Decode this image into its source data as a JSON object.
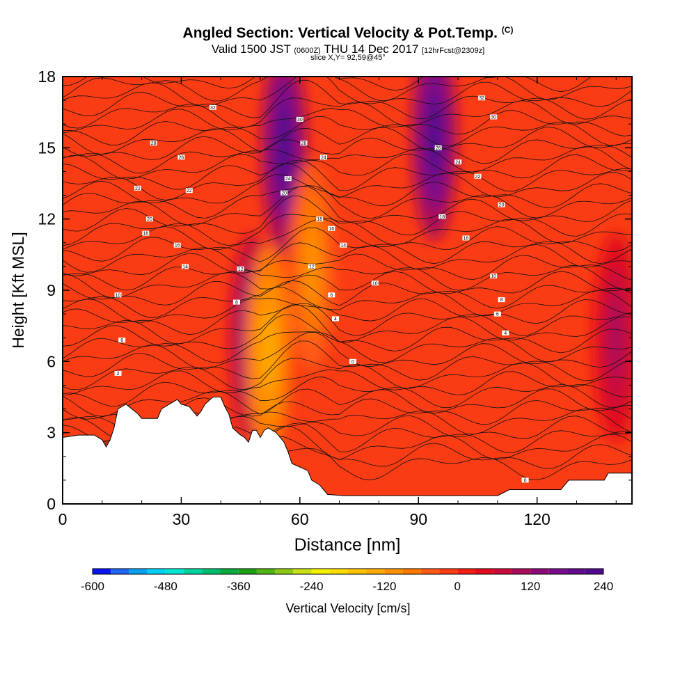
{
  "title": {
    "main": "Angled Section: Vertical Velocity & Pot.Temp.",
    "main_unit": "(C)",
    "valid_prefix": "Valid 1500 JST",
    "valid_utc": "(0600Z)",
    "valid_date": "THU 14 Dec 2017",
    "forecast": "[12hrFcst@2309z]",
    "slice": "slice X,Y= 92,59@45°"
  },
  "chart_data": {
    "type": "heatmap",
    "xlabel": "Distance [nm]",
    "ylabel": "Height [Kft MSL]",
    "xlim": [
      0,
      144
    ],
    "ylim": [
      0,
      18
    ],
    "xticks": [
      0,
      30,
      60,
      90,
      120
    ],
    "yticks": [
      0,
      3,
      6,
      9,
      12,
      15,
      18
    ],
    "colorbar": {
      "label": "Vertical Velocity [cm/s]",
      "ticks": [
        -600,
        -480,
        -360,
        -240,
        -120,
        0,
        120,
        240
      ],
      "levels": [
        -600,
        -570,
        -540,
        -510,
        -480,
        -450,
        -420,
        -390,
        -360,
        -330,
        -300,
        -270,
        -240,
        -210,
        -180,
        -150,
        -120,
        -90,
        -60,
        -30,
        0,
        30,
        60,
        90,
        120,
        150,
        180,
        210,
        240
      ],
      "colors": [
        "#0a14f0",
        "#1e64f0",
        "#0aa0f0",
        "#00d2f5",
        "#00e6d2",
        "#00d2a0",
        "#00be6e",
        "#0aaa3c",
        "#1ea014",
        "#50b414",
        "#8cc814",
        "#c8e114",
        "#f0f000",
        "#ffdc00",
        "#ffc300",
        "#ffaa00",
        "#ff9100",
        "#ff7800",
        "#ff5a14",
        "#fa3c14",
        "#f01e14",
        "#e10a1e",
        "#c80a3c",
        "#aa0a5a",
        "#8c0a78",
        "#780a8c",
        "#640a8c",
        "#500a8c"
      ]
    },
    "terrain_kft": [
      [
        0,
        2.8
      ],
      [
        4,
        2.9
      ],
      [
        8,
        2.9
      ],
      [
        10,
        2.7
      ],
      [
        11,
        2.4
      ],
      [
        12,
        2.7
      ],
      [
        13,
        3.2
      ],
      [
        14,
        4.0
      ],
      [
        16,
        4.2
      ],
      [
        19,
        3.8
      ],
      [
        20,
        3.6
      ],
      [
        24,
        3.6
      ],
      [
        25,
        4.0
      ],
      [
        27,
        4.2
      ],
      [
        29,
        4.4
      ],
      [
        30,
        4.2
      ],
      [
        32,
        4.1
      ],
      [
        34,
        3.7
      ],
      [
        35,
        3.9
      ],
      [
        36,
        4.2
      ],
      [
        38,
        4.5
      ],
      [
        40,
        4.5
      ],
      [
        41,
        4.1
      ],
      [
        42,
        3.8
      ],
      [
        43,
        3.2
      ],
      [
        45,
        2.9
      ],
      [
        46,
        2.8
      ],
      [
        47,
        2.6
      ],
      [
        48,
        3.1
      ],
      [
        49,
        3.1
      ],
      [
        50,
        2.8
      ],
      [
        51,
        3.1
      ],
      [
        52,
        3.2
      ],
      [
        54,
        3.0
      ],
      [
        56,
        2.6
      ],
      [
        57,
        2.2
      ],
      [
        58,
        1.7
      ],
      [
        62,
        1.4
      ],
      [
        63,
        1.0
      ],
      [
        65,
        0.8
      ],
      [
        66,
        0.6
      ],
      [
        67,
        0.4
      ],
      [
        71,
        0.35
      ],
      [
        110,
        0.35
      ],
      [
        113,
        0.6
      ],
      [
        126,
        0.6
      ],
      [
        128,
        1.0
      ],
      [
        137,
        1.0
      ],
      [
        138,
        1.3
      ],
      [
        144,
        1.3
      ]
    ],
    "vv_core_cms": [
      {
        "x": 48,
        "z": 7.0,
        "w": 170
      },
      {
        "x": 56,
        "z": 15.0,
        "w": 230
      },
      {
        "x": 94,
        "z": 15.5,
        "w": 220
      },
      {
        "x": 52,
        "z": 6.5,
        "w": -150
      },
      {
        "x": 63,
        "z": 10.0,
        "w": -100
      },
      {
        "x": 140,
        "z": 7.0,
        "w": 110
      }
    ],
    "theta_contours_c": [
      {
        "theta": 0,
        "x": 73.4,
        "z": 6.0
      },
      {
        "theta": 0,
        "x": 117,
        "z": 1.0
      },
      {
        "theta": 2,
        "x": 14,
        "z": 5.5
      },
      {
        "theta": 4,
        "x": 69,
        "z": 7.8
      },
      {
        "theta": 4,
        "x": 112,
        "z": 7.2
      },
      {
        "theta": 6,
        "x": 15,
        "z": 6.9
      },
      {
        "theta": 6,
        "x": 68,
        "z": 8.8
      },
      {
        "theta": 6,
        "x": 110,
        "z": 8.0
      },
      {
        "theta": 8,
        "x": 44,
        "z": 8.5
      },
      {
        "theta": 8,
        "x": 111,
        "z": 8.6
      },
      {
        "theta": 10,
        "x": 14,
        "z": 8.8
      },
      {
        "theta": 10,
        "x": 79,
        "z": 9.3
      },
      {
        "theta": 10,
        "x": 109,
        "z": 9.6
      },
      {
        "theta": 12,
        "x": 45,
        "z": 9.9
      },
      {
        "theta": 12,
        "x": 63,
        "z": 10.0
      },
      {
        "theta": 14,
        "x": 31,
        "z": 10.0
      },
      {
        "theta": 14,
        "x": 71,
        "z": 10.9
      },
      {
        "theta": 16,
        "x": 29,
        "z": 10.9
      },
      {
        "theta": 16,
        "x": 68,
        "z": 11.6
      },
      {
        "theta": 16,
        "x": 102,
        "z": 11.2
      },
      {
        "theta": 18,
        "x": 21,
        "z": 11.4
      },
      {
        "theta": 18,
        "x": 65,
        "z": 12.0
      },
      {
        "theta": 18,
        "x": 96,
        "z": 12.1
      },
      {
        "theta": 20,
        "x": 22,
        "z": 12.0
      },
      {
        "theta": 20,
        "x": 56,
        "z": 13.1
      },
      {
        "theta": 20,
        "x": 111,
        "z": 12.6
      },
      {
        "theta": 22,
        "x": 19,
        "z": 13.3
      },
      {
        "theta": 22,
        "x": 32,
        "z": 13.2
      },
      {
        "theta": 22,
        "x": 105,
        "z": 13.8
      },
      {
        "theta": 24,
        "x": 57,
        "z": 13.7
      },
      {
        "theta": 24,
        "x": 66,
        "z": 14.6
      },
      {
        "theta": 24,
        "x": 100,
        "z": 14.4
      },
      {
        "theta": 26,
        "x": 30,
        "z": 14.6
      },
      {
        "theta": 26,
        "x": 95,
        "z": 15.0
      },
      {
        "theta": 28,
        "x": 23,
        "z": 15.2
      },
      {
        "theta": 28,
        "x": 61,
        "z": 15.2
      },
      {
        "theta": 30,
        "x": 60,
        "z": 16.2
      },
      {
        "theta": 30,
        "x": 109,
        "z": 16.3
      },
      {
        "theta": 32,
        "x": 38,
        "z": 16.7
      },
      {
        "theta": 32,
        "x": 106,
        "z": 17.1
      }
    ]
  }
}
